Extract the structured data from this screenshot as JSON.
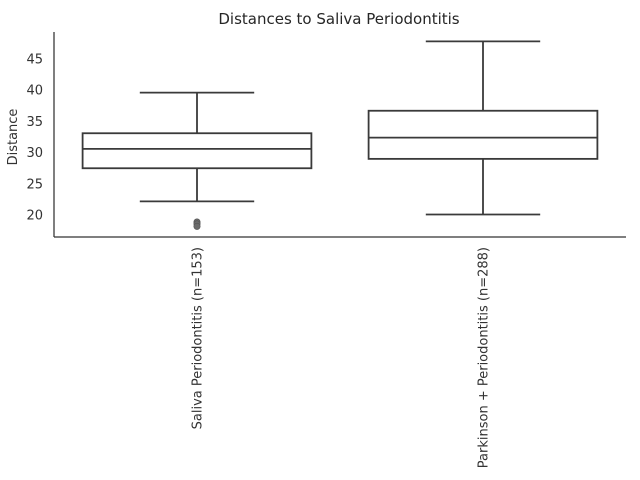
{
  "chart_data": {
    "type": "box",
    "title": "Distances to Saliva Periodontitis",
    "xlabel": "",
    "ylabel": "Distance",
    "ylim": [
      16.5,
      49.3
    ],
    "yticks": [
      20,
      25,
      30,
      35,
      40,
      45
    ],
    "grid": false,
    "categories": [
      "Saliva Periodontitis (n=153)",
      "Parkinson + Periodontitis (n=288)"
    ],
    "boxes": [
      {
        "whisker_low": 22.2,
        "q1": 27.5,
        "median": 30.6,
        "q3": 33.1,
        "whisker_high": 39.6,
        "outliers": [
          18.9,
          18.6,
          18.2
        ]
      },
      {
        "whisker_low": 20.1,
        "q1": 29.0,
        "median": 32.4,
        "q3": 36.7,
        "whisker_high": 47.8,
        "outliers": []
      }
    ]
  },
  "colors": {
    "box_stroke": "#3a3a3a",
    "axis": "#333333",
    "outlier": "#6b6b6b"
  }
}
